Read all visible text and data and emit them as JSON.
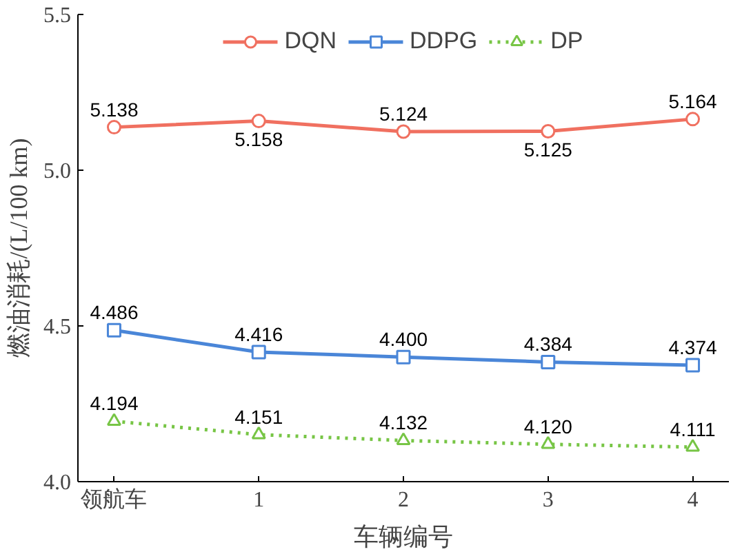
{
  "chart_data": {
    "type": "line",
    "xlabel": "车辆编号",
    "ylabel": "燃油消耗/(L/100 km)",
    "categories": [
      "领航车",
      "1",
      "2",
      "3",
      "4"
    ],
    "ylim": [
      4.0,
      5.5
    ],
    "yticks": [
      {
        "value": 4.0,
        "label": "4.0"
      },
      {
        "value": 4.5,
        "label": "4.5"
      },
      {
        "value": 5.0,
        "label": "5.0"
      },
      {
        "value": 5.5,
        "label": "5.5"
      }
    ],
    "series": [
      {
        "name": "DQN",
        "color": "#f07060",
        "values": [
          5.138,
          5.158,
          5.124,
          5.125,
          5.164
        ],
        "value_labels": [
          "5.138",
          "5.158",
          "5.124",
          "5.125",
          "5.164"
        ],
        "marker": "circle",
        "line_style": "solid"
      },
      {
        "name": "DDPG",
        "color": "#4a86d8",
        "values": [
          4.486,
          4.416,
          4.4,
          4.384,
          4.374
        ],
        "value_labels": [
          "4.486",
          "4.416",
          "4.400",
          "4.384",
          "4.374"
        ],
        "marker": "square",
        "line_style": "solid"
      },
      {
        "name": "DP",
        "color": "#77c545",
        "values": [
          4.194,
          4.151,
          4.132,
          4.12,
          4.111
        ],
        "value_labels": [
          "4.194",
          "4.151",
          "4.132",
          "4.120",
          "4.111"
        ],
        "marker": "triangle",
        "line_style": "dotted"
      }
    ],
    "legend": "top",
    "grid": false
  }
}
